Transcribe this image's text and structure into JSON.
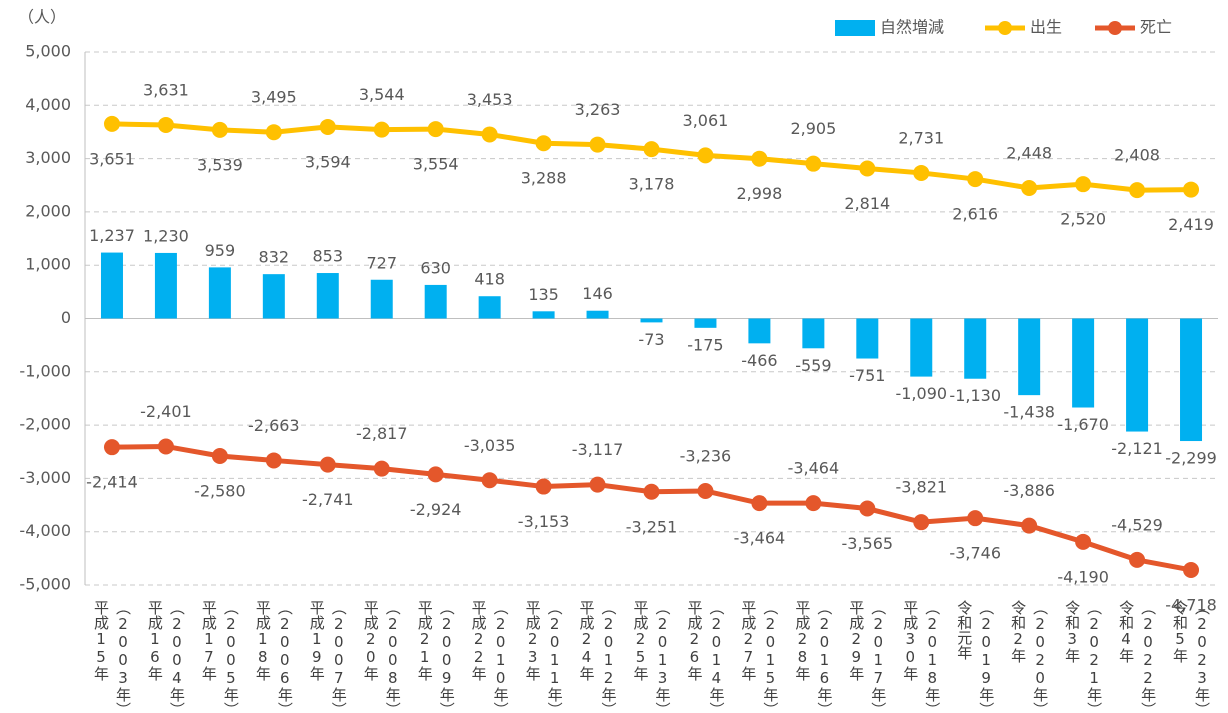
{
  "chart_data": {
    "type": "bar_line",
    "y_unit": "（人）",
    "categories": [
      "平成15年\n（2003年）",
      "平成16年\n（2004年）",
      "平成17年\n（2005年）",
      "平成18年\n（2006年）",
      "平成19年\n（2007年）",
      "平成20年\n（2008年）",
      "平成21年\n（2009年）",
      "平成22年\n（2010年）",
      "平成23年\n（2011年）",
      "平成24年\n（2012年）",
      "平成25年\n（2013年）",
      "平成26年\n（2014年）",
      "平成27年\n（2015年）",
      "平成28年\n（2016年）",
      "平成29年\n（2017年）",
      "平成30年\n（2018年）",
      "令和元年\n（2019年）",
      "令和2年\n（2020年）",
      "令和3年\n（2021年）",
      "令和4年\n（2022年）",
      "令和5年\n（2023年）"
    ],
    "series": [
      {
        "name": "自然増減",
        "kind": "bar",
        "color": "#00b0f0",
        "values": [
          1237,
          1230,
          959,
          832,
          853,
          727,
          630,
          418,
          135,
          146,
          -73,
          -175,
          -466,
          -559,
          -751,
          -1090,
          -1130,
          -1438,
          -1670,
          -2121,
          -2299
        ],
        "value_labels": [
          "1,237",
          "1,230",
          "959",
          "832",
          "853",
          "727",
          "630",
          "418",
          "135",
          "146",
          "-73",
          "-175",
          "-466",
          "-559",
          "-751",
          "-1,090",
          "-1,130",
          "-1,438",
          "-1,670",
          "-2,121",
          "-2,299"
        ]
      },
      {
        "name": "出生",
        "kind": "line",
        "color": "#ffc000",
        "values": [
          3651,
          3631,
          3539,
          3495,
          3594,
          3544,
          3554,
          3453,
          3288,
          3263,
          3178,
          3061,
          2998,
          2905,
          2814,
          2731,
          2616,
          2448,
          2520,
          2408,
          2419
        ],
        "value_labels": [
          "3,651",
          "3,631",
          "3,539",
          "3,495",
          "3,594",
          "3,544",
          "3,554",
          "3,453",
          "3,288",
          "3,263",
          "3,178",
          "3,061",
          "2,998",
          "2,905",
          "2,814",
          "2,731",
          "2,616",
          "2,448",
          "2,520",
          "2,408",
          "2,419"
        ]
      },
      {
        "name": "死亡",
        "kind": "line",
        "color": "#e4572b",
        "values": [
          -2414,
          -2401,
          -2580,
          -2663,
          -2741,
          -2817,
          -2924,
          -3035,
          -3153,
          -3117,
          -3251,
          -3236,
          -3464,
          -3464,
          -3565,
          -3821,
          -3746,
          -3886,
          -4190,
          -4529,
          -4718
        ],
        "value_labels": [
          "-2,414",
          "-2,401",
          "-2,580",
          "-2,663",
          "-2,741",
          "-2,817",
          "-2,924",
          "-3,035",
          "-3,153",
          "-3,117",
          "-3,251",
          "-3,236",
          "-3,464",
          "-3,464",
          "-3,565",
          "-3,821",
          "-3,746",
          "-3,886",
          "-4,190",
          "-4,529",
          "-4,718"
        ]
      }
    ],
    "ylim": [
      -5000,
      5000
    ],
    "yticks": [
      {
        "value": -5000,
        "label": "-5,000"
      },
      {
        "value": -4000,
        "label": "-4,000"
      },
      {
        "value": -3000,
        "label": "-3,000"
      },
      {
        "value": -2000,
        "label": "-2,000"
      },
      {
        "value": -1000,
        "label": "-1,000"
      },
      0,
      {
        "value": 1000,
        "label": "1,000"
      },
      {
        "value": 2000,
        "label": "2,000"
      },
      {
        "value": 3000,
        "label": "3,000"
      },
      {
        "value": 4000,
        "label": "4,000"
      },
      {
        "value": 5000,
        "label": "5,000"
      }
    ],
    "grid": true,
    "legend": "top-right"
  }
}
